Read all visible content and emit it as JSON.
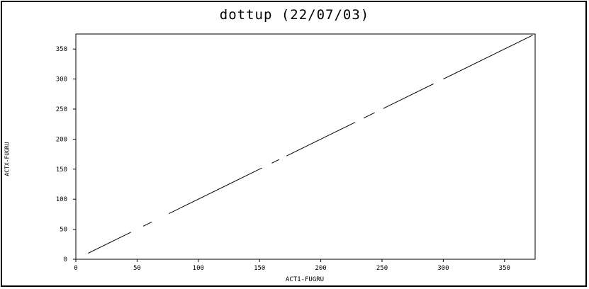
{
  "chart_data": {
    "type": "line",
    "title": "dottup (22/07/03)",
    "xlabel": "ACT1-FUGRU",
    "ylabel": "ACTX-FUGRU",
    "xlim": [
      0,
      375
    ],
    "ylim": [
      0,
      375
    ],
    "xticks": [
      0,
      50,
      100,
      150,
      200,
      250,
      300,
      350
    ],
    "yticks": [
      0,
      50,
      100,
      150,
      200,
      250,
      300,
      350
    ],
    "grid": false,
    "series": [
      {
        "segments": [
          [
            [
              10,
              10
            ],
            [
              45,
              45
            ]
          ],
          [
            [
              55,
              55
            ],
            [
              62,
              62
            ]
          ],
          [
            [
              76,
              76
            ],
            [
              152,
              152
            ]
          ],
          [
            [
              160,
              160
            ],
            [
              166,
              166
            ]
          ],
          [
            [
              172,
              172
            ],
            [
              228,
              228
            ]
          ],
          [
            [
              235,
              235
            ],
            [
              244,
              244
            ]
          ],
          [
            [
              251,
              251
            ],
            [
              292,
              292
            ]
          ],
          [
            [
              300,
              300
            ],
            [
              373,
              373
            ]
          ]
        ]
      }
    ]
  }
}
